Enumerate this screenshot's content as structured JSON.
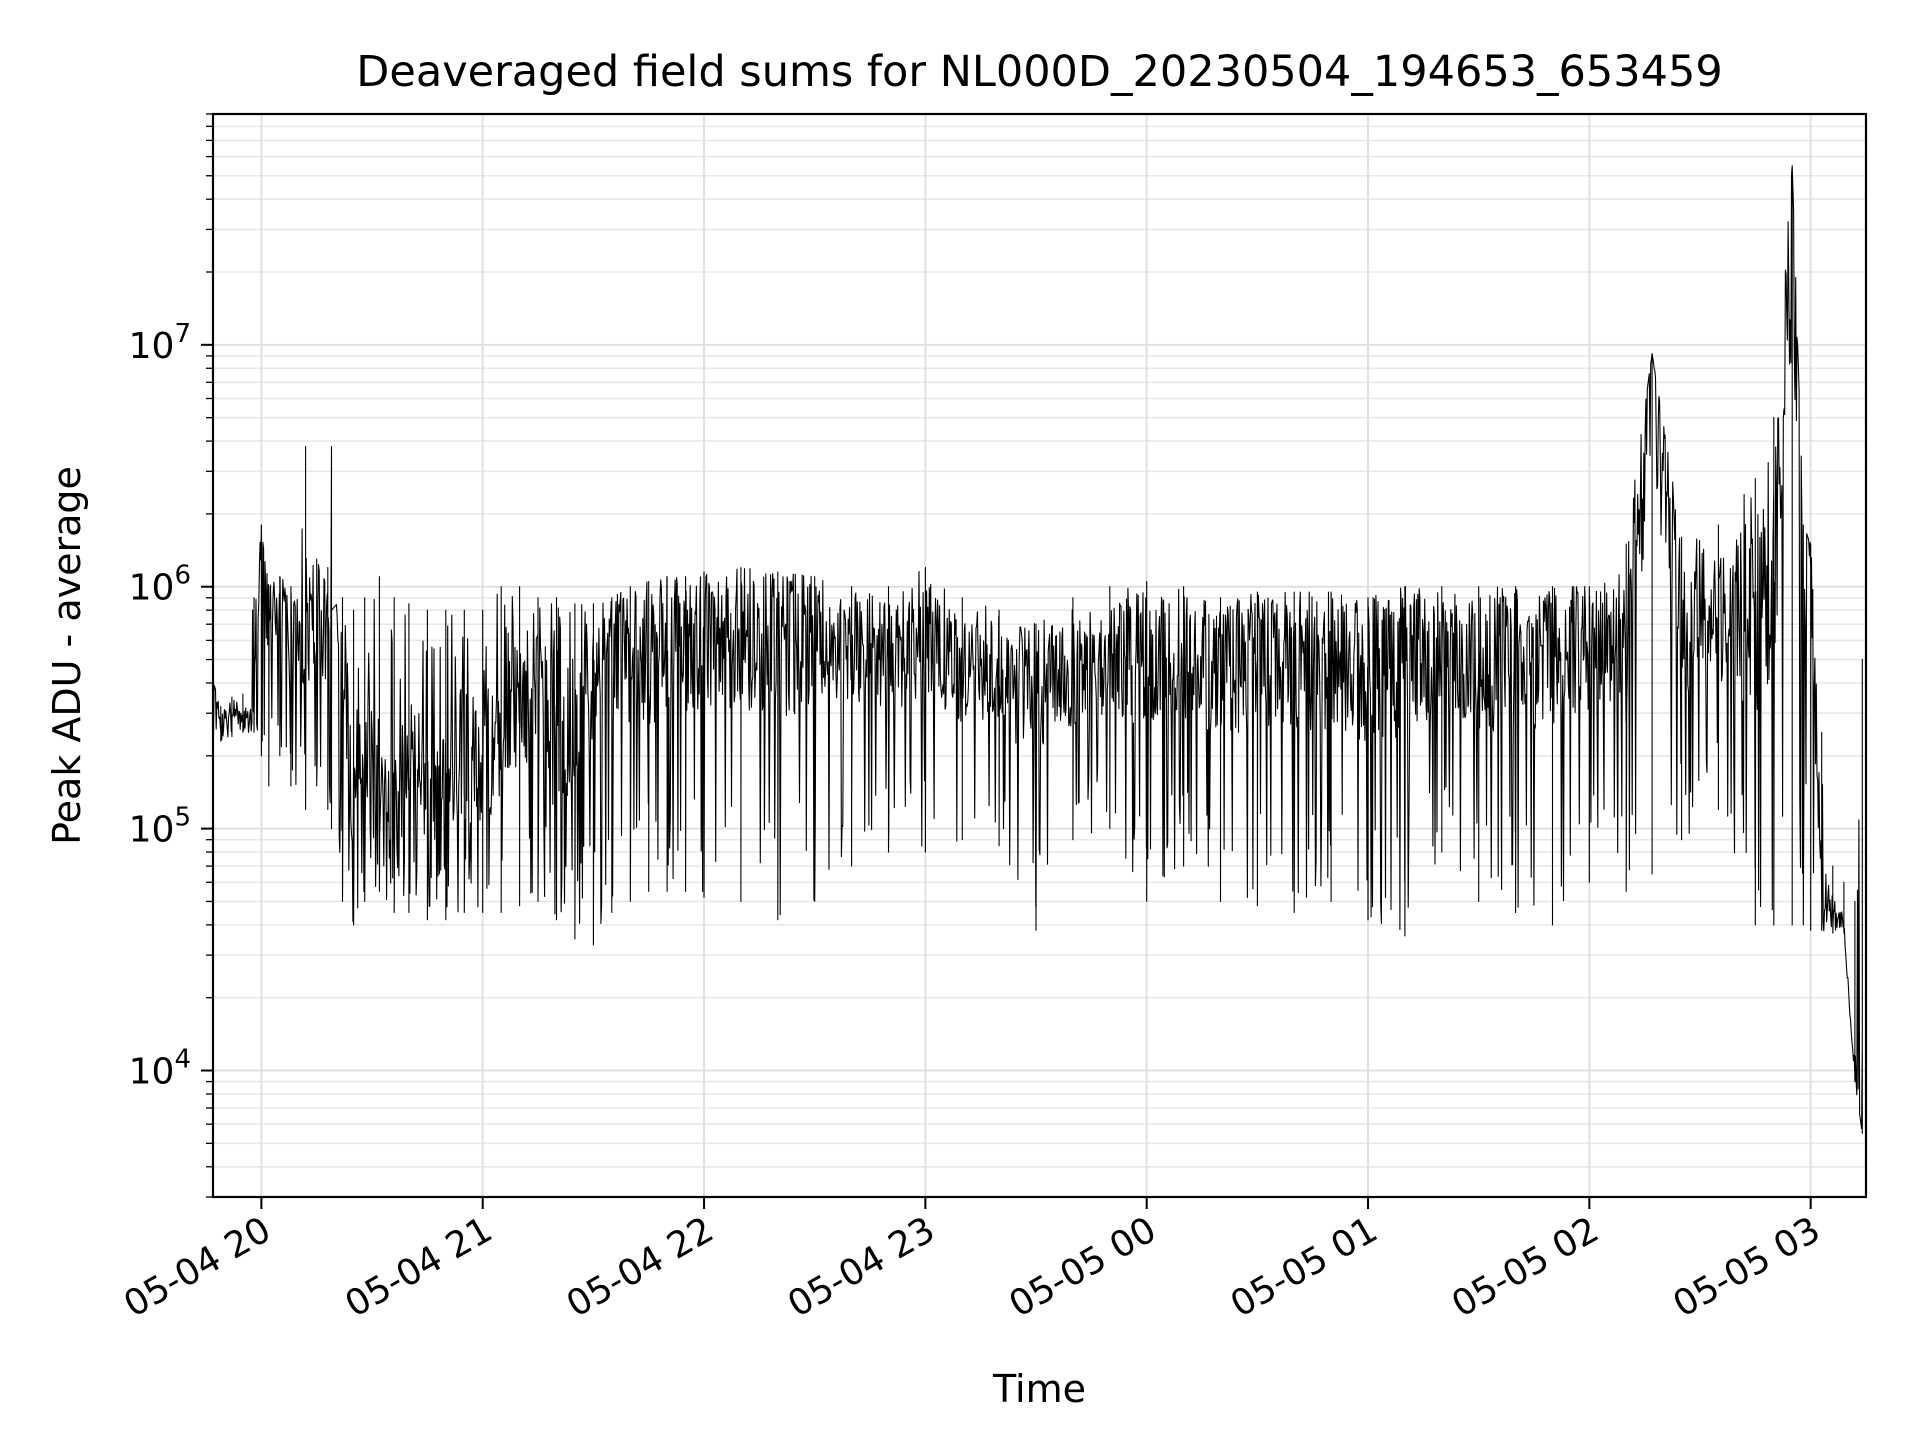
{
  "chart_data": {
    "type": "line",
    "title": "Deaveraged field sums for NL000D_20230504_194653_653459",
    "xlabel": "Time",
    "ylabel": "Peak ADU - average",
    "yscale": "log",
    "ylim": [
      3000,
      90000000
    ],
    "xlim": [
      "2023-05-04 19:46:53",
      "2023-05-05 03:15:00"
    ],
    "x_tick_labels": [
      "05-04 20",
      "05-04 21",
      "05-04 22",
      "05-04 23",
      "05-05 00",
      "05-05 01",
      "05-05 02",
      "05-05 03"
    ],
    "x_ticks": [
      "2023-05-04 20:00",
      "2023-05-04 21:00",
      "2023-05-04 22:00",
      "2023-05-04 23:00",
      "2023-05-05 00:00",
      "2023-05-05 01:00",
      "2023-05-05 02:00",
      "2023-05-05 03:00"
    ],
    "y_tick_labels": [
      {
        "base": "10",
        "exp": "4",
        "value": 10000
      },
      {
        "base": "10",
        "exp": "5",
        "value": 100000
      },
      {
        "base": "10",
        "exp": "6",
        "value": 1000000
      },
      {
        "base": "10",
        "exp": "7",
        "value": 10000000
      }
    ],
    "grid": true,
    "line_color": "#000000",
    "series": [
      {
        "x": [
          "2023-05-04 19:47",
          "2023-05-04 19:49",
          "2023-05-04 19:52",
          "2023-05-04 19:55",
          "2023-05-04 19:58",
          "2023-05-04 20:00",
          "2023-05-04 20:02",
          "2023-05-04 20:05",
          "2023-05-04 20:08",
          "2023-05-04 20:12",
          "2023-05-04 20:15",
          "2023-05-04 20:18",
          "2023-05-04 20:19",
          "2023-05-04 20:22",
          "2023-05-04 20:25",
          "2023-05-04 20:28",
          "2023-05-04 20:32",
          "2023-05-04 20:36",
          "2023-05-04 20:40",
          "2023-05-04 20:45",
          "2023-05-04 20:50",
          "2023-05-04 20:55",
          "2023-05-04 21:00",
          "2023-05-04 21:05",
          "2023-05-04 21:10",
          "2023-05-04 21:15",
          "2023-05-04 21:20",
          "2023-05-04 21:25",
          "2023-05-04 21:30",
          "2023-05-04 21:35",
          "2023-05-04 21:40",
          "2023-05-04 21:45",
          "2023-05-04 21:50",
          "2023-05-04 21:55",
          "2023-05-04 22:00",
          "2023-05-04 22:10",
          "2023-05-04 22:20",
          "2023-05-04 22:30",
          "2023-05-04 22:40",
          "2023-05-04 22:50",
          "2023-05-04 23:00",
          "2023-05-04 23:10",
          "2023-05-04 23:20",
          "2023-05-04 23:30",
          "2023-05-04 23:40",
          "2023-05-04 23:50",
          "2023-05-05 00:00",
          "2023-05-05 00:10",
          "2023-05-05 00:20",
          "2023-05-05 00:30",
          "2023-05-05 00:40",
          "2023-05-05 00:50",
          "2023-05-05 01:00",
          "2023-05-05 01:10",
          "2023-05-05 01:20",
          "2023-05-05 01:30",
          "2023-05-05 01:40",
          "2023-05-05 01:50",
          "2023-05-05 02:00",
          "2023-05-05 02:10",
          "2023-05-05 02:17",
          "2023-05-05 02:25",
          "2023-05-05 02:35",
          "2023-05-05 02:45",
          "2023-05-05 02:50",
          "2023-05-05 02:55",
          "2023-05-05 02:58",
          "2023-05-05 03:00",
          "2023-05-05 03:03",
          "2023-05-05 03:06",
          "2023-05-05 03:09",
          "2023-05-05 03:12",
          "2023-05-05 03:14"
        ],
        "y": [
          500000,
          250000,
          300000,
          280000,
          320000,
          1800000,
          700000,
          900000,
          500000,
          700000,
          800000,
          600000,
          3800000,
          400000,
          150000,
          200000,
          150000,
          100000,
          200000,
          150000,
          180000,
          200000,
          180000,
          250000,
          300000,
          500000,
          200000,
          300000,
          400000,
          500000,
          500000,
          500000,
          600000,
          600000,
          600000,
          600000,
          600000,
          600000,
          550000,
          500000,
          600000,
          450000,
          400000,
          400000,
          450000,
          500000,
          500000,
          500000,
          450000,
          500000,
          500000,
          500000,
          450000,
          500000,
          500000,
          500000,
          500000,
          550000,
          550000,
          550000,
          9200000,
          650000,
          700000,
          800000,
          900000,
          55000000,
          1500000,
          1200000,
          50000,
          45000,
          40000,
          9000,
          5500
        ],
        "envelope_low": [
          230000,
          230000,
          240000,
          250000,
          250000,
          200000,
          150000,
          200000,
          150000,
          120000,
          150000,
          120000,
          100000,
          50000,
          40000,
          50000,
          55000,
          45000,
          45000,
          42000,
          42000,
          45000,
          45000,
          45000,
          48000,
          50000,
          42000,
          35000,
          33000,
          45000,
          50000,
          55000,
          55000,
          55000,
          52000,
          50000,
          42000,
          50000,
          70000,
          80000,
          80000,
          90000,
          85000,
          38000,
          90000,
          100000,
          50000,
          70000,
          50000,
          48000,
          45000,
          50000,
          42000,
          36000,
          80000,
          50000,
          45000,
          40000,
          60000,
          55000,
          65000,
          90000,
          120000,
          40000,
          40000,
          40000,
          40000,
          38000,
          38000,
          37000,
          37000,
          9000,
          5500
        ],
        "envelope_high": [
          400000,
          320000,
          350000,
          360000,
          900000,
          1700000,
          1000000,
          1100000,
          1000000,
          3800000,
          1300000,
          1200000,
          800000,
          900000,
          800000,
          900000,
          1100000,
          900000,
          850000,
          800000,
          800000,
          800000,
          800000,
          1000000,
          1000000,
          900000,
          900000,
          850000,
          850000,
          900000,
          1000000,
          1050000,
          1100000,
          1100000,
          1150000,
          1200000,
          1150000,
          1100000,
          1000000,
          1000000,
          1200000,
          900000,
          800000,
          700000,
          900000,
          1000000,
          1050000,
          1000000,
          900000,
          950000,
          950000,
          950000,
          900000,
          1000000,
          1000000,
          1000000,
          1000000,
          1000000,
          1000000,
          1500000,
          9200000,
          1600000,
          1800000,
          2800000,
          5000000,
          55000000,
          1800000,
          1500000,
          250000,
          70000,
          60000,
          50000,
          500000
        ]
      }
    ]
  }
}
